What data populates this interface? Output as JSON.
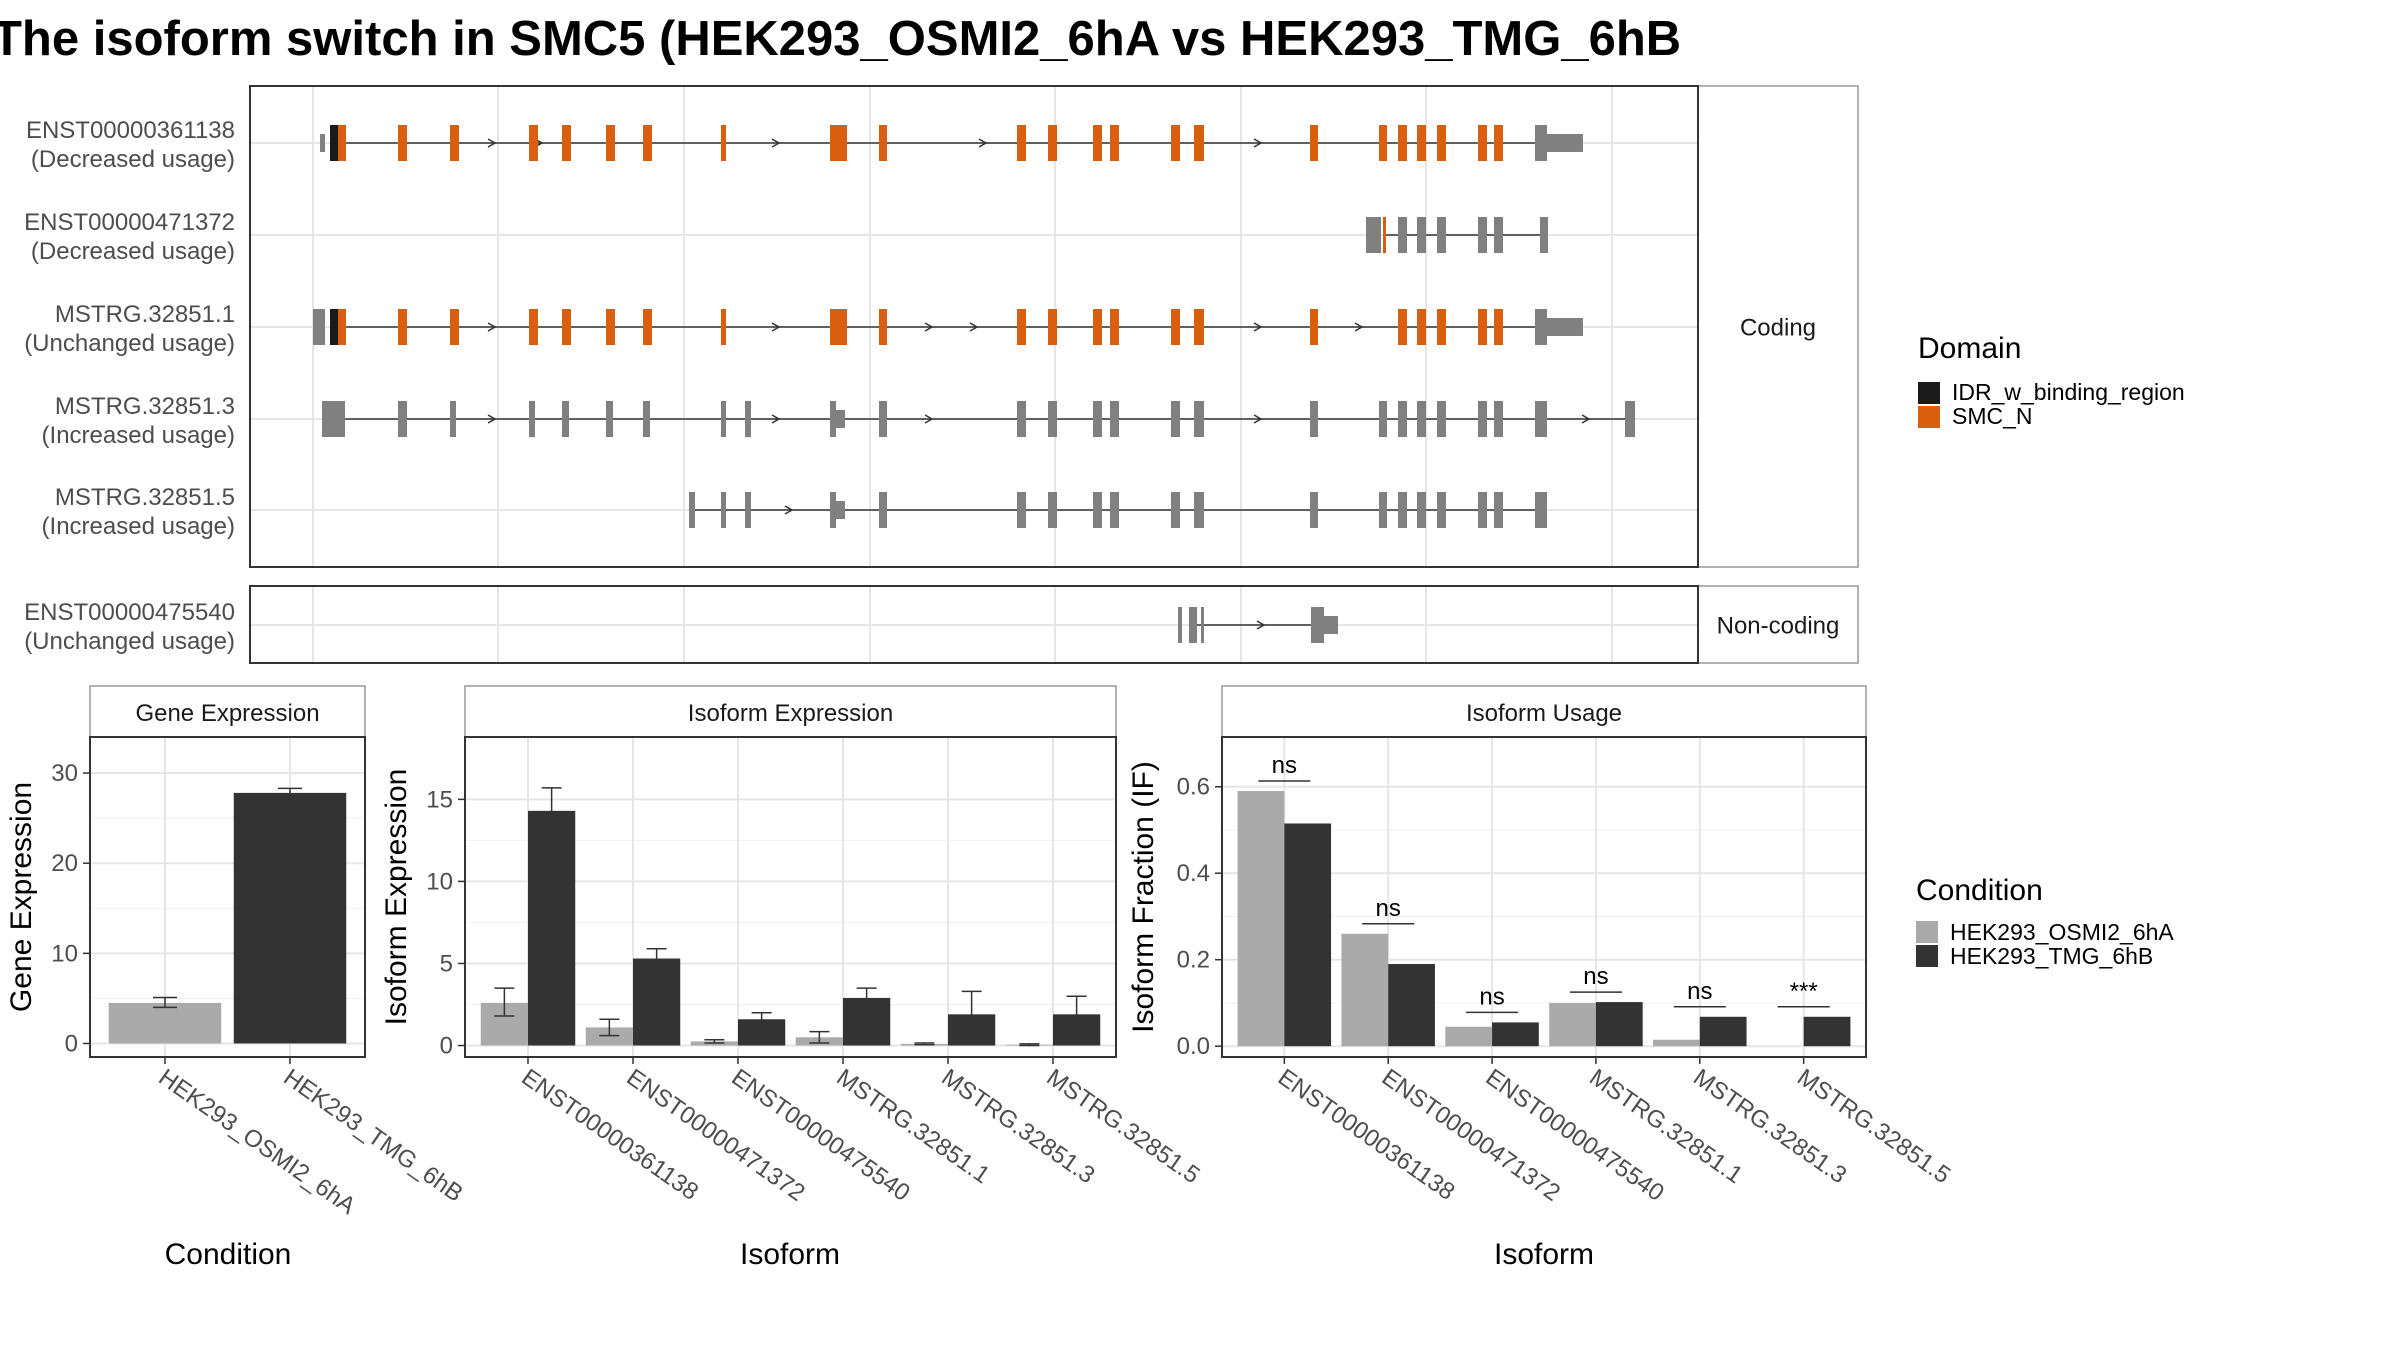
{
  "title": "The isoform switch in SMC5 (HEK293_OSMI2_6hA vs HEK293_TMG_6hB",
  "colors": {
    "orange": "#d95f0e",
    "grey": "#808080",
    "black": "#1a1a1a",
    "cond1": "#aaaaaa",
    "cond2": "#333333",
    "panel_border": "#333333",
    "strip_border": "#999999",
    "grid": "#e6e6e6"
  },
  "structure": {
    "facets": [
      "Coding",
      "Non-coding"
    ],
    "isoforms": [
      {
        "name": "ENST00000361138",
        "usage": "(Decreased usage)",
        "facet": "Coding"
      },
      {
        "name": "ENST00000471372",
        "usage": "(Decreased usage)",
        "facet": "Coding"
      },
      {
        "name": "MSTRG.32851.1",
        "usage": "(Unchanged usage)",
        "facet": "Coding"
      },
      {
        "name": "MSTRG.32851.3",
        "usage": "(Increased usage)",
        "facet": "Coding"
      },
      {
        "name": "MSTRG.32851.5",
        "usage": "(Increased usage)",
        "facet": "Coding"
      },
      {
        "name": "ENST00000475540",
        "usage": "(Unchanged usage)",
        "facet": "Non-coding"
      }
    ]
  },
  "legend_domain": {
    "title": "Domain",
    "items": [
      {
        "label": "IDR_w_binding_region",
        "color": "#1a1a1a"
      },
      {
        "label": "SMC_N",
        "color": "#d95f0e"
      }
    ]
  },
  "legend_condition": {
    "title": "Condition",
    "items": [
      {
        "label": "HEK293_OSMI2_6hA",
        "color": "#aaaaaa"
      },
      {
        "label": "HEK293_TMG_6hB",
        "color": "#333333"
      }
    ]
  },
  "chart_data": [
    {
      "type": "bar",
      "title": "Gene Expression",
      "xlabel": "Condition",
      "ylabel": "Gene Expression",
      "ylim": [
        -1.5,
        34
      ],
      "ticks": [
        0,
        10,
        20,
        30
      ],
      "categories": [
        "HEK293_OSMI2_6hA",
        "HEK293_TMG_6hB"
      ],
      "values": [
        4.5,
        27.8
      ],
      "errors": [
        [
          4.0,
          5.1
        ],
        [
          27.3,
          28.3
        ]
      ]
    },
    {
      "type": "bar",
      "title": "Isoform Expression",
      "xlabel": "Isoform",
      "ylabel": "Isoform Expression",
      "ylim": [
        -0.7,
        18.8
      ],
      "ticks": [
        0,
        5,
        10,
        15
      ],
      "categories": [
        "ENST00000361138",
        "ENST00000471372",
        "ENST00000475540",
        "MSTRG.32851.1",
        "MSTRG.32851.3",
        "MSTRG.32851.5"
      ],
      "series": [
        {
          "name": "HEK293_OSMI2_6hA",
          "values": [
            2.6,
            1.1,
            0.25,
            0.5,
            0.1,
            0.05
          ],
          "errors": [
            [
              1.8,
              3.5
            ],
            [
              0.6,
              1.6
            ],
            [
              0.15,
              0.35
            ],
            [
              0.15,
              0.85
            ],
            [
              0.05,
              0.15
            ],
            [
              0.0,
              0.1
            ]
          ]
        },
        {
          "name": "HEK293_TMG_6hB",
          "values": [
            14.3,
            5.3,
            1.6,
            2.9,
            1.9,
            1.9
          ],
          "errors": [
            [
              13.0,
              15.7
            ],
            [
              4.8,
              5.9
            ],
            [
              1.2,
              2.0
            ],
            [
              2.4,
              3.5
            ],
            [
              0.5,
              3.3
            ],
            [
              0.8,
              3.0
            ]
          ]
        }
      ]
    },
    {
      "type": "bar",
      "title": "Isoform Usage",
      "xlabel": "Isoform",
      "ylabel": "Isoform Fraction (IF)",
      "ylim": [
        -0.025,
        0.715
      ],
      "ticks": [
        0.0,
        0.2,
        0.4,
        0.6
      ],
      "tick_labels": [
        "0.0",
        "0.2",
        "0.4",
        "0.6"
      ],
      "categories": [
        "ENST00000361138",
        "ENST00000471372",
        "ENST00000475540",
        "MSTRG.32851.1",
        "MSTRG.32851.3",
        "MSTRG.32851.5"
      ],
      "series": [
        {
          "name": "HEK293_OSMI2_6hA",
          "values": [
            0.59,
            0.26,
            0.045,
            0.1,
            0.015,
            0.0
          ]
        },
        {
          "name": "HEK293_TMG_6hB",
          "values": [
            0.515,
            0.19,
            0.055,
            0.102,
            0.068,
            0.068
          ]
        }
      ],
      "significance": [
        "ns",
        "ns",
        "ns",
        "ns",
        "ns",
        "***"
      ]
    }
  ]
}
